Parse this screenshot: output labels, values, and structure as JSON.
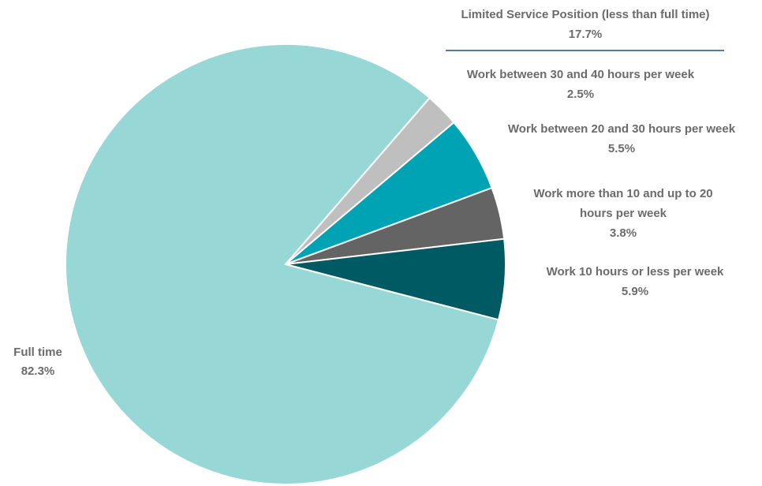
{
  "chart_data": {
    "type": "pie",
    "title": "",
    "slices": [
      {
        "label": "Full time",
        "value": 82.3,
        "display": "82.3%",
        "color": "#97D8D6"
      },
      {
        "label": "Work between 30 and 40 hours per week",
        "value": 2.5,
        "display": "2.5%",
        "color": "#BFBFBF"
      },
      {
        "label": "Work between 20 and 30 hours per week",
        "value": 5.5,
        "display": "5.5%",
        "color": "#00A3B4"
      },
      {
        "label": "Work more than 10 and up to 20 hours per week",
        "value": 3.8,
        "display": "3.8%",
        "color": "#646464"
      },
      {
        "label": "Work 10 hours or less per week",
        "value": 5.9,
        "display": "5.9%",
        "color": "#005A64"
      }
    ],
    "group": {
      "label": "Limited Service Position (less than full time)",
      "display": "17.7%",
      "line_color": "#1F4E79"
    },
    "label_color": "#6B6B6B"
  }
}
